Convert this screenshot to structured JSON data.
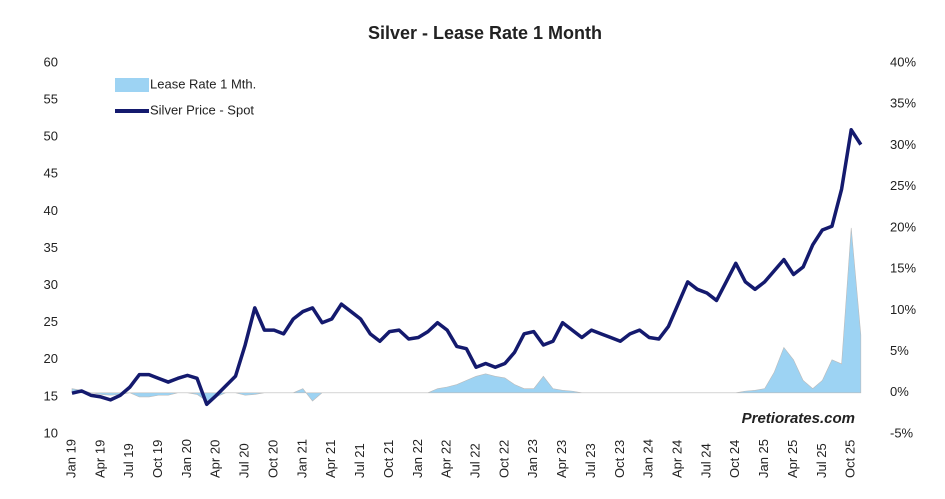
{
  "chart_data": {
    "type": "line-area",
    "title": "Silver - Lease Rate 1 Month",
    "watermark": "Pretiorates.com",
    "categories": [
      "Jan 19",
      null,
      null,
      "Apr 19",
      null,
      null,
      "Jul 19",
      null,
      null,
      "Oct 19",
      null,
      null,
      "Jan 20",
      null,
      null,
      "Apr 20",
      null,
      null,
      "Jul 20",
      null,
      null,
      "Oct 20",
      null,
      null,
      "Jan 21",
      null,
      null,
      "Apr 21",
      null,
      null,
      "Jul 21",
      null,
      null,
      "Oct 21",
      null,
      null,
      "Jan 22",
      null,
      null,
      "Apr 22",
      null,
      null,
      "Jul 22",
      null,
      null,
      "Oct 22",
      null,
      null,
      "Jan 23",
      null,
      null,
      "Apr 23",
      null,
      null,
      "Jul 23",
      null,
      null,
      "Oct 23",
      null,
      null,
      "Jan 24",
      null,
      null,
      "Apr 24",
      null,
      null,
      "Jul 24",
      null,
      null,
      "Oct 24",
      null,
      null,
      "Jan 25",
      null,
      null,
      "Apr 25",
      null,
      null,
      "Jul 25",
      null,
      null,
      "Oct 25",
      null
    ],
    "series": [
      {
        "name": "Lease Rate 1 Mth.",
        "color": "#9dd3f3",
        "axis": "y2",
        "kind": "area",
        "values": [
          0.5,
          0.3,
          0,
          -0.2,
          -0.3,
          -0.2,
          0,
          -0.5,
          -0.5,
          -0.3,
          -0.3,
          0,
          0,
          -0.2,
          -1,
          -0.5,
          0,
          0,
          -0.3,
          -0.2,
          0,
          0,
          0,
          0,
          0.5,
          -1,
          0,
          0,
          0,
          0,
          0,
          0,
          0,
          0,
          0,
          0,
          0,
          0,
          0.5,
          0.7,
          1,
          1.5,
          2,
          2.3,
          2,
          1.8,
          1,
          0.5,
          0.5,
          2,
          0.5,
          0.3,
          0.2,
          0,
          0,
          0,
          0,
          0,
          0,
          0,
          0,
          0,
          0,
          0,
          0,
          0,
          0,
          0,
          0,
          0,
          0.2,
          0.3,
          0.5,
          2.5,
          5.5,
          4,
          1.5,
          0.5,
          1.5,
          4,
          3.5,
          20,
          7
        ]
      },
      {
        "name": "Silver Price - Spot",
        "color": "#141a6e",
        "kind": "line",
        "values": [
          15.5,
          15.8,
          15.2,
          15.0,
          14.6,
          15.2,
          16.3,
          18.0,
          18.0,
          17.5,
          17.0,
          17.5,
          17.9,
          17.5,
          14.0,
          15.2,
          16.5,
          17.8,
          22.0,
          27.0,
          24.0,
          24.0,
          23.5,
          25.5,
          26.5,
          27.0,
          25.0,
          25.5,
          27.5,
          26.5,
          25.5,
          23.5,
          22.5,
          23.8,
          24.0,
          22.8,
          23.0,
          23.8,
          25.0,
          24.0,
          21.8,
          21.5,
          19.0,
          19.5,
          19.0,
          19.5,
          21.0,
          23.5,
          23.8,
          22.0,
          22.5,
          25.0,
          24.0,
          23.0,
          24.0,
          23.5,
          23.0,
          22.5,
          23.5,
          24.0,
          23.0,
          22.8,
          24.5,
          27.5,
          30.5,
          29.5,
          29.0,
          28.0,
          30.5,
          33.0,
          30.5,
          29.5,
          30.5,
          32.0,
          33.5,
          31.5,
          32.5,
          35.5,
          37.5,
          38.0,
          43.0,
          51.0,
          49.0
        ]
      }
    ],
    "ylim": [
      10,
      60
    ],
    "yticks": [
      10,
      15,
      20,
      25,
      30,
      35,
      40,
      45,
      50,
      55,
      60
    ],
    "y2lim": [
      -5,
      40
    ],
    "y2ticks": [
      {
        "value": -5,
        "label": "-5%"
      },
      {
        "value": 0,
        "label": "0%"
      },
      {
        "value": 5,
        "label": "5%"
      },
      {
        "value": 10,
        "label": "10%"
      },
      {
        "value": 15,
        "label": "15%"
      },
      {
        "value": 20,
        "label": "20%"
      },
      {
        "value": 25,
        "label": "25%"
      },
      {
        "value": 30,
        "label": "30%"
      },
      {
        "value": 35,
        "label": "35%"
      },
      {
        "value": 40,
        "label": "40%"
      }
    ],
    "legend": "top-left"
  }
}
